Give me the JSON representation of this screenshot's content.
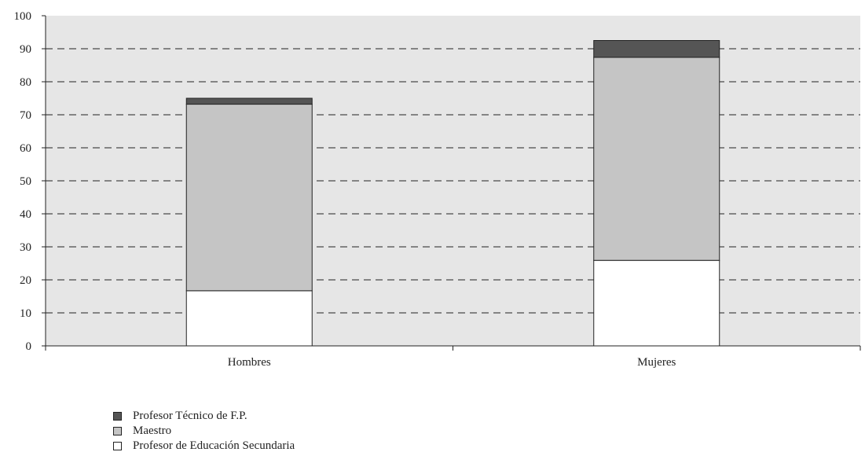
{
  "chart_data": {
    "type": "bar",
    "stacked": true,
    "categories": [
      "Hombres",
      "Mujeres"
    ],
    "series": [
      {
        "name": "Profesor de Educación Secundaria",
        "values": [
          16.7,
          25.9
        ],
        "color": "#ffffff"
      },
      {
        "name": "Maestro",
        "values": [
          56.5,
          61.5
        ],
        "color": "#c5c5c5"
      },
      {
        "name": "Profesor Técnico de F.P.",
        "values": [
          1.8,
          5.1
        ],
        "color": "#555555"
      }
    ],
    "ylim": [
      0,
      100
    ],
    "yticks": [
      "0",
      "10",
      "20",
      "30",
      "40",
      "50",
      "60",
      "70",
      "80",
      "90",
      "100"
    ],
    "grid": "dashed-horizontal",
    "plot_background": "#e6e6e6",
    "legend_position": "bottom-left",
    "legend_order": [
      "Profesor Técnico de F.P.",
      "Maestro",
      "Profesor de Educación Secundaria"
    ],
    "title": "",
    "xlabel": "",
    "ylabel": ""
  }
}
